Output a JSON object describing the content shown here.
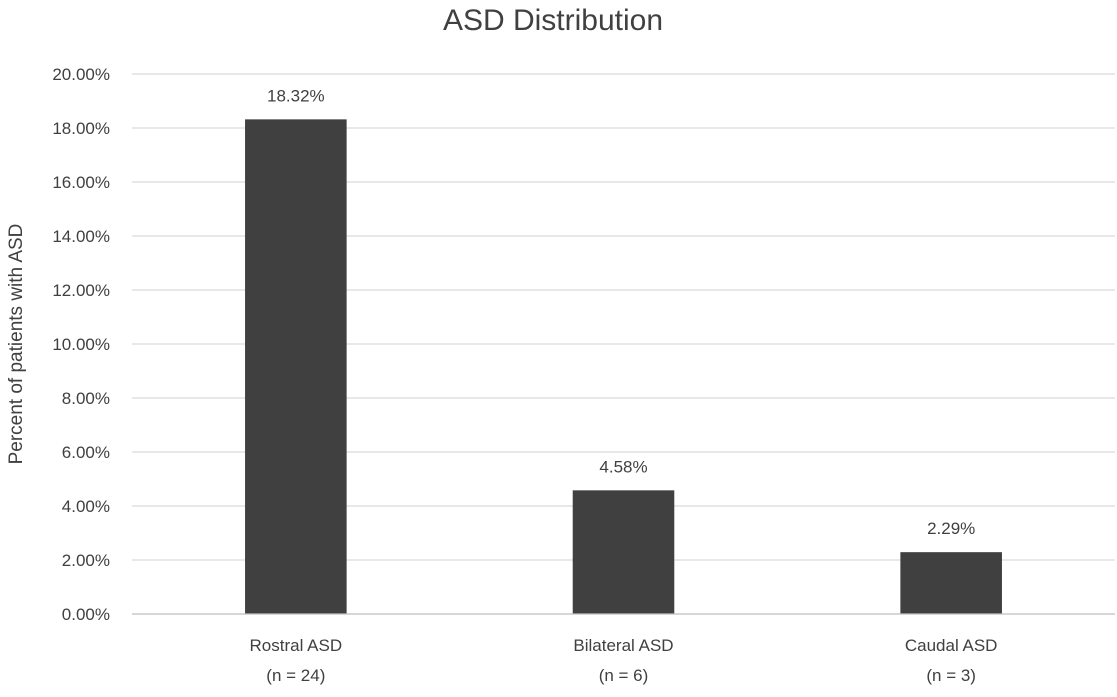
{
  "chart_data": {
    "type": "bar",
    "title": "ASD Distribution",
    "xlabel": "",
    "ylabel": "Percent of patients with ASD",
    "categories": [
      {
        "name": "Rostral ASD",
        "sub": "(n = 24)"
      },
      {
        "name": "Bilateral ASD",
        "sub": "(n = 6)"
      },
      {
        "name": "Caudal ASD",
        "sub": "(n = 3)"
      }
    ],
    "values": [
      18.32,
      4.58,
      2.29
    ],
    "data_labels": [
      "18.32%",
      "4.58%",
      "2.29%"
    ],
    "ylim": [
      0,
      20
    ],
    "yticks": [
      "0.00%",
      "2.00%",
      "4.00%",
      "6.00%",
      "8.00%",
      "10.00%",
      "12.00%",
      "14.00%",
      "16.00%",
      "18.00%",
      "20.00%"
    ],
    "grid": true,
    "legend": "none",
    "bar_color": "#404040"
  }
}
